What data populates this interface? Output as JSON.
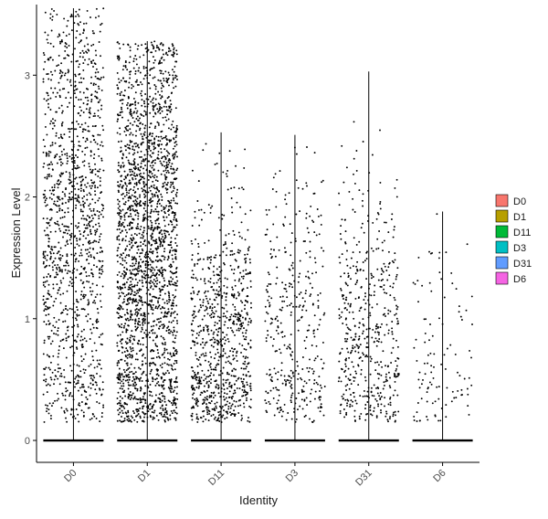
{
  "chart_data": {
    "type": "scatter",
    "subtype": "violin-jitter",
    "xlabel": "Identity",
    "ylabel": "Expression Level",
    "categories": [
      "D0",
      "D1",
      "D11",
      "D3",
      "D31",
      "D6"
    ],
    "ylim": [
      -0.18,
      3.58
    ],
    "yticks": [
      0,
      1,
      2,
      3
    ],
    "grid": false,
    "legend_position": "right",
    "legend": [
      {
        "label": "D0",
        "color": "#F8766D"
      },
      {
        "label": "D1",
        "color": "#B79F00"
      },
      {
        "label": "D11",
        "color": "#00BA38"
      },
      {
        "label": "D3",
        "color": "#00BFC4"
      },
      {
        "label": "D31",
        "color": "#619CFF"
      },
      {
        "label": "D6",
        "color": "#F564E3"
      }
    ],
    "groups": [
      {
        "name": "D0",
        "max": 3.55,
        "n_nonzero": 1300,
        "mean_nonzero": 1.75
      },
      {
        "name": "D1",
        "max": 3.28,
        "n_nonzero": 2300,
        "mean_nonzero": 1.6
      },
      {
        "name": "D11",
        "max": 2.53,
        "n_nonzero": 850,
        "mean_nonzero": 0.75
      },
      {
        "name": "D3",
        "max": 2.51,
        "n_nonzero": 380,
        "mean_nonzero": 0.9
      },
      {
        "name": "D31",
        "max": 3.03,
        "n_nonzero": 520,
        "mean_nonzero": 0.85
      },
      {
        "name": "D6",
        "max": 1.88,
        "n_nonzero": 110,
        "mean_nonzero": 0.7
      }
    ],
    "point_color": "#000000"
  }
}
